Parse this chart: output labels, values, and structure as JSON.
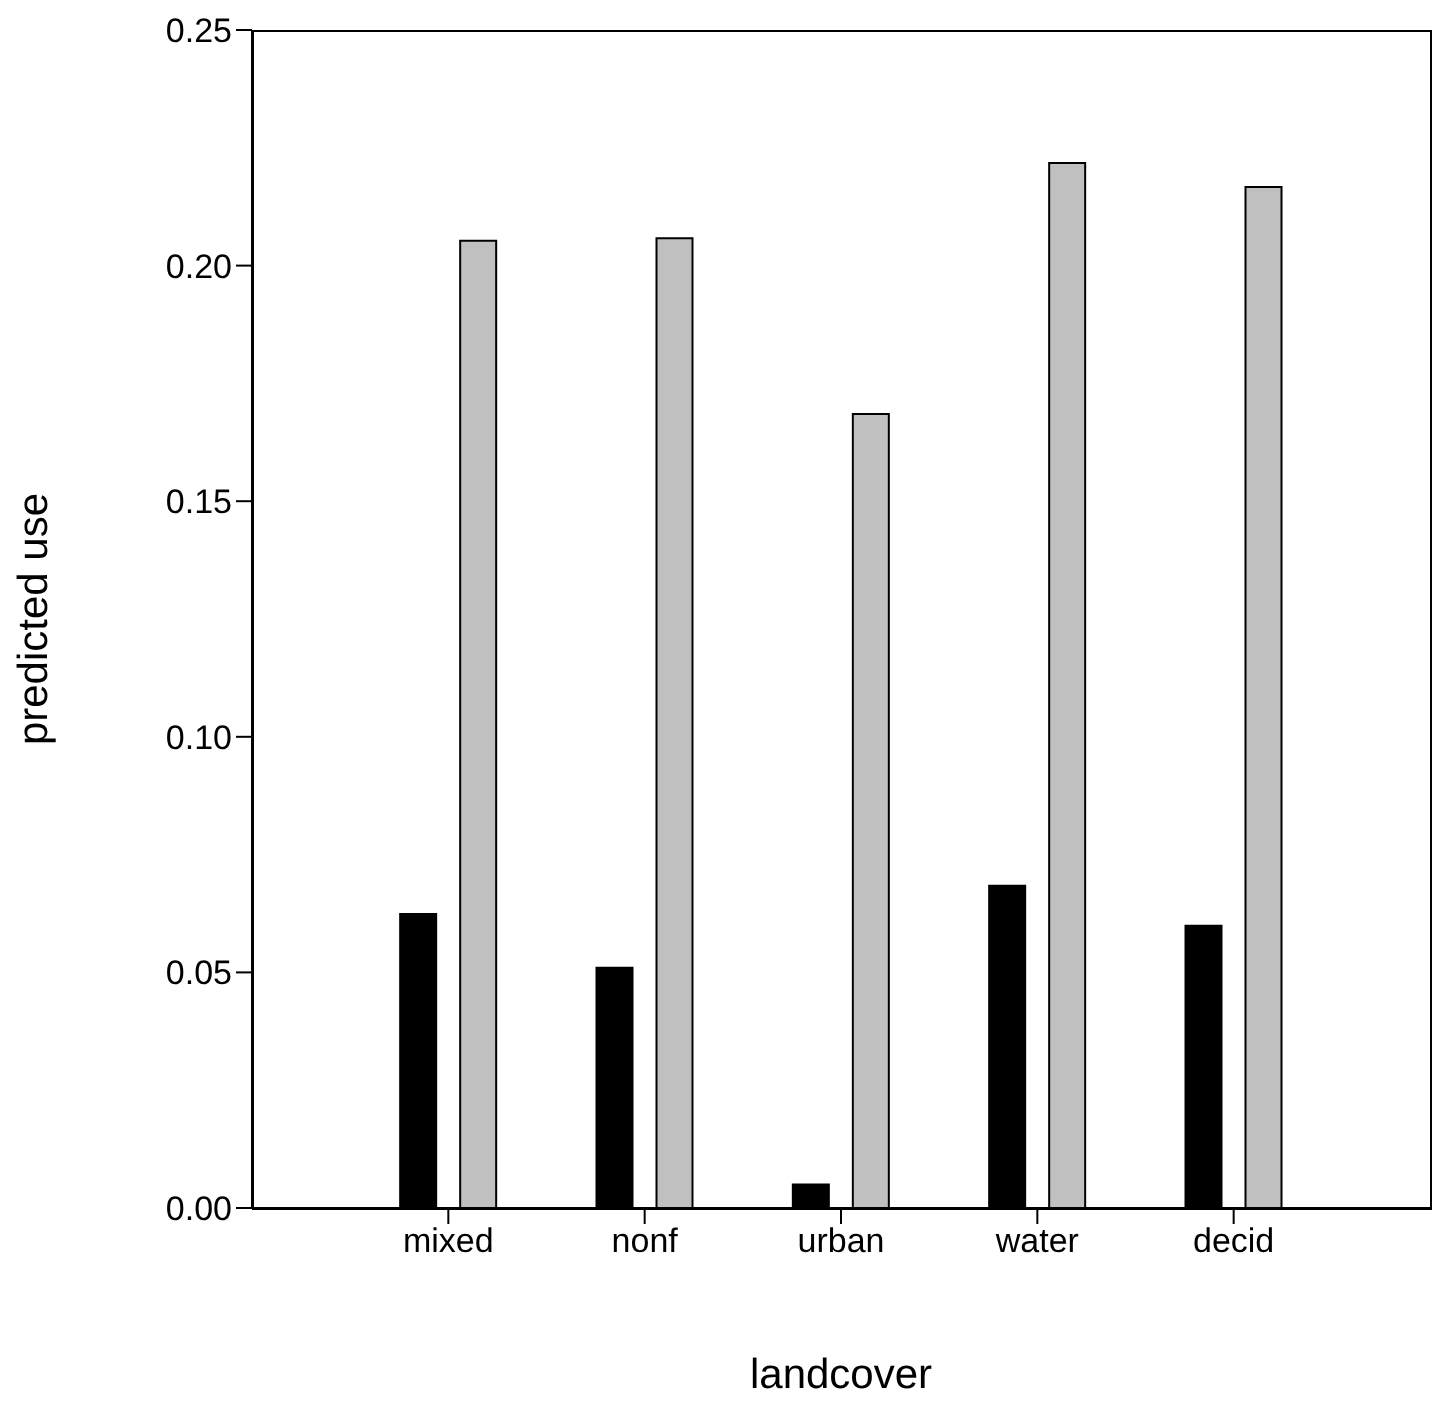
{
  "chart_data": {
    "type": "bar",
    "xlabel": "landcover",
    "ylabel": "predicted use",
    "categories": [
      "mixed",
      "nonf",
      "urban",
      "water",
      "decid"
    ],
    "series": [
      {
        "color": "#000000",
        "values": [
          0.0624,
          0.051,
          0.005,
          0.0684,
          0.0599
        ]
      },
      {
        "color": "#c0c0c0",
        "values": [
          0.2053,
          0.2058,
          0.1685,
          0.2218,
          0.2167
        ]
      }
    ],
    "ylim": [
      0,
      0.25
    ],
    "yticks": [
      {
        "value": 0,
        "label": "0.00"
      },
      0.05,
      {
        "value": 0.1,
        "label": "0.10"
      },
      0.15,
      {
        "value": 0.2,
        "label": "0.20"
      },
      0.25
    ],
    "grid": false
  }
}
